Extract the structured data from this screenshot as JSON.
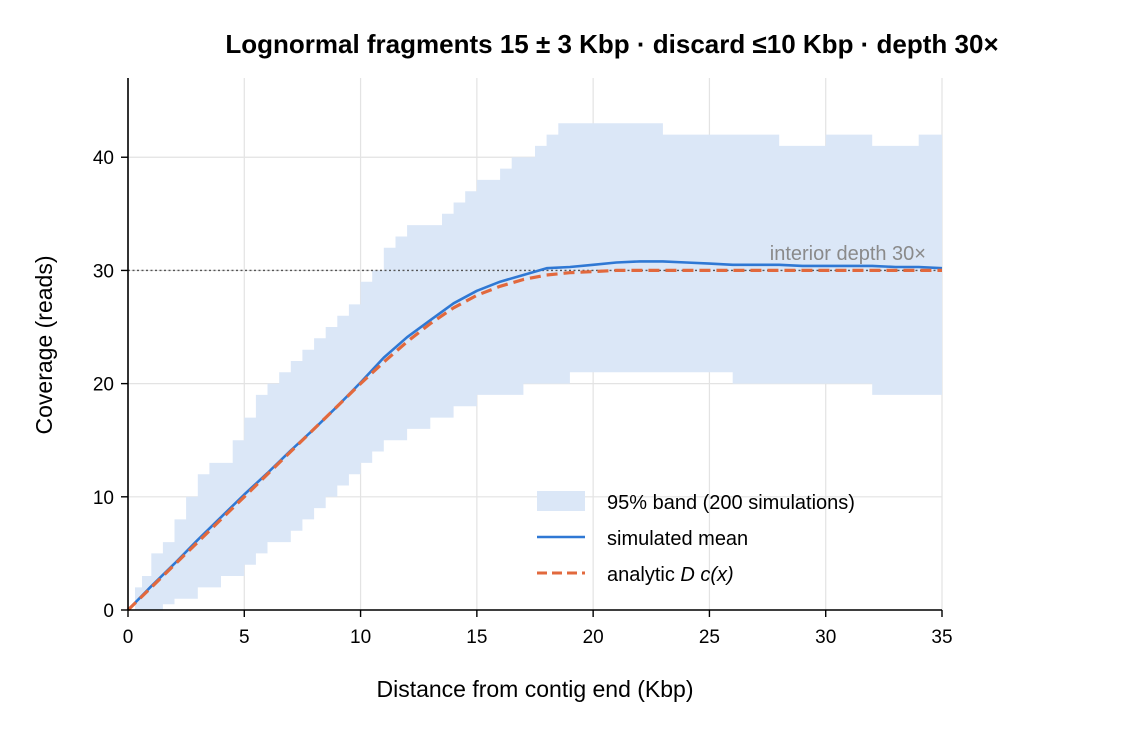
{
  "chart_data": {
    "type": "line",
    "title": "Lognormal fragments 15 ± 3 Kbp · discard ≤10 Kbp · depth 30×",
    "xlabel": "Distance from contig end (Kbp)",
    "ylabel": "Coverage (reads)",
    "xlim": [
      0,
      35
    ],
    "ylim": [
      0,
      47
    ],
    "xticks": [
      "0",
      "5",
      "10",
      "15",
      "20",
      "25",
      "30",
      "35"
    ],
    "yticks": [
      "0",
      "10",
      "20",
      "30",
      "40"
    ],
    "grid": true,
    "legend_position": "lower-right",
    "reference_line": {
      "y": 30,
      "label": "interior depth 30×"
    },
    "colors": {
      "band": "#dbe7f7",
      "mean": "#2f78d4",
      "analytic": "#e2693d",
      "reference": "#555555"
    },
    "series": [
      {
        "name": "95% band (200 simulations)",
        "kind": "band",
        "x": [
          0,
          0.3,
          0.6,
          1.0,
          1.5,
          2.0,
          2.5,
          3.0,
          3.5,
          4.0,
          4.5,
          5.0,
          5.5,
          6.0,
          6.5,
          7.0,
          7.5,
          8.0,
          8.5,
          9.0,
          9.5,
          10.0,
          10.5,
          11.0,
          11.5,
          12.0,
          12.5,
          13.0,
          13.5,
          14.0,
          14.5,
          15.0,
          15.5,
          16.0,
          16.5,
          17.0,
          17.5,
          18.0,
          18.5,
          19.0,
          20.0,
          21.0,
          22.0,
          23.0,
          24.0,
          25.0,
          26.0,
          27.0,
          28.0,
          29.0,
          30.0,
          31.0,
          32.0,
          33.0,
          34.0,
          35.0
        ],
        "lower": [
          0,
          0,
          0,
          0,
          0.5,
          1,
          1,
          2,
          2,
          3,
          3,
          4,
          5,
          6,
          6,
          7,
          8,
          9,
          10,
          11,
          12,
          13,
          14,
          15,
          15,
          16,
          16,
          17,
          17,
          18,
          18,
          19,
          19,
          19,
          19,
          20,
          20,
          20,
          20,
          21,
          21,
          21,
          21,
          21,
          21,
          21,
          20,
          20,
          20,
          20,
          20,
          20,
          19,
          19,
          19,
          19
        ],
        "upper": [
          0,
          2,
          3,
          5,
          6,
          8,
          10,
          12,
          13,
          13,
          15,
          17,
          19,
          20,
          21,
          22,
          23,
          24,
          25,
          26,
          27,
          29,
          30,
          32,
          33,
          34,
          34,
          34,
          35,
          36,
          37,
          38,
          38,
          39,
          40,
          40,
          41,
          42,
          43,
          43,
          43,
          43,
          43,
          42,
          42,
          42,
          42,
          42,
          41,
          41,
          42,
          42,
          41,
          41,
          42,
          42
        ]
      },
      {
        "name": "simulated mean",
        "kind": "line",
        "x": [
          0,
          1,
          2,
          3,
          4,
          5,
          6,
          7,
          8,
          9,
          10,
          11,
          12,
          13,
          14,
          15,
          16,
          17,
          18,
          19,
          20,
          21,
          22,
          23,
          24,
          25,
          26,
          27,
          28,
          29,
          30,
          31,
          32,
          33,
          34,
          35
        ],
        "y": [
          0,
          2.1,
          4.1,
          6.2,
          8.2,
          10.2,
          12.1,
          14.1,
          16.0,
          18.0,
          20.1,
          22.3,
          24.1,
          25.6,
          27.1,
          28.2,
          29.0,
          29.6,
          30.2,
          30.3,
          30.5,
          30.7,
          30.8,
          30.8,
          30.7,
          30.6,
          30.5,
          30.5,
          30.5,
          30.4,
          30.4,
          30.4,
          30.4,
          30.3,
          30.3,
          30.2
        ]
      },
      {
        "name": "analytic D c(x)",
        "kind": "dashed-line",
        "x": [
          0,
          1,
          2,
          3,
          4,
          5,
          6,
          7,
          8,
          9,
          10,
          11,
          12,
          13,
          14,
          15,
          16,
          17,
          18,
          19,
          20,
          21,
          22,
          23,
          24,
          25,
          26,
          27,
          28,
          29,
          30,
          31,
          32,
          33,
          34,
          35
        ],
        "y": [
          0,
          2.0,
          4.0,
          6.0,
          8.0,
          10.0,
          12.0,
          14.0,
          16.0,
          18.0,
          20.0,
          21.9,
          23.7,
          25.3,
          26.7,
          27.8,
          28.6,
          29.2,
          29.6,
          29.8,
          29.9,
          30.0,
          30.0,
          30.0,
          30.0,
          30.0,
          30.0,
          30.0,
          30.0,
          30.0,
          30.0,
          30.0,
          30.0,
          30.0,
          30.0,
          30.0
        ]
      }
    ]
  },
  "legend": {
    "band_label": "95% band (200 simulations)",
    "mean_label": "simulated mean",
    "analytic_prefix": "analytic ",
    "analytic_math": "D c(x)"
  }
}
